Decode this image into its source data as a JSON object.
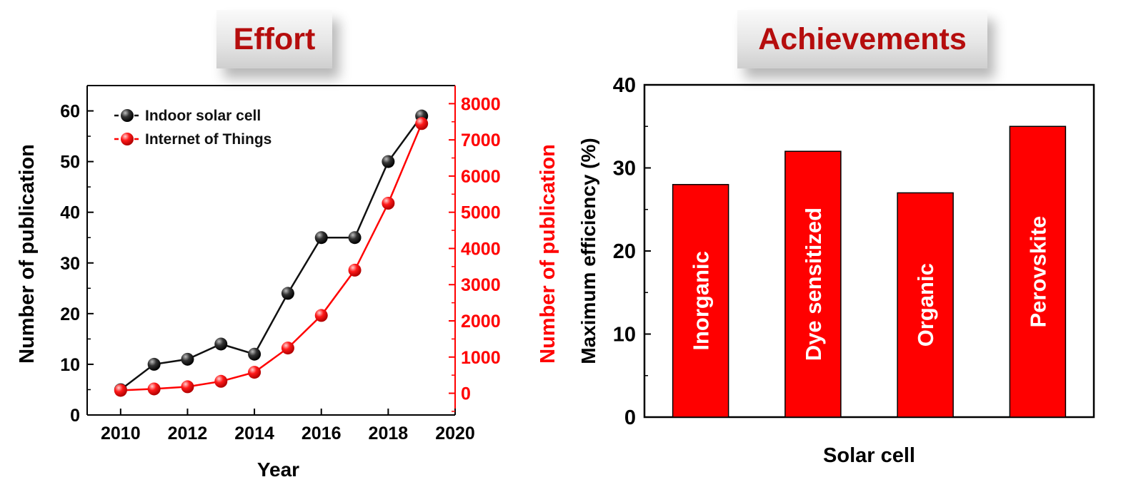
{
  "banners": {
    "left": "Effort",
    "right": "Achievements"
  },
  "colors": {
    "black_series": "#111111",
    "red_series": "#ff0000",
    "bar_fill": "#ff0000",
    "banner_text": "#b50d0d"
  },
  "chart_data": [
    {
      "type": "line",
      "xlabel": "Year",
      "ylabel_left": "Number of publication",
      "ylabel_right": "Number of publication",
      "xlim": [
        2009,
        2020
      ],
      "ylim_left": [
        0,
        65
      ],
      "ylim_right": [
        -600,
        8500
      ],
      "xticks": [
        2010,
        2012,
        2014,
        2016,
        2018,
        2020
      ],
      "yticks_left": [
        0,
        10,
        20,
        30,
        40,
        50,
        60
      ],
      "yticks_right": [
        0,
        1000,
        2000,
        3000,
        4000,
        5000,
        6000,
        7000,
        8000
      ],
      "legend_position": "top-left",
      "series": [
        {
          "name": "Indoor solar cell",
          "axis": "left",
          "color": "#111111",
          "x": [
            2010,
            2011,
            2012,
            2013,
            2014,
            2015,
            2016,
            2017,
            2018,
            2019
          ],
          "y": [
            5,
            10,
            11,
            14,
            12,
            24,
            35,
            35,
            50,
            59
          ]
        },
        {
          "name": "Internet of Things",
          "axis": "right",
          "color": "#ff0000",
          "x": [
            2010,
            2011,
            2012,
            2013,
            2014,
            2015,
            2016,
            2017,
            2018,
            2019
          ],
          "y": [
            80,
            120,
            180,
            330,
            580,
            1250,
            2150,
            3400,
            5250,
            7450
          ]
        }
      ]
    },
    {
      "type": "bar",
      "xlabel": "Solar cell",
      "ylabel": "Maximum efficiency (%)",
      "ylim": [
        0,
        40
      ],
      "yticks": [
        0,
        10,
        20,
        30,
        40
      ],
      "categories": [
        "Inorganic",
        "Dye sensitized",
        "Organic",
        "Perovskite"
      ],
      "values": [
        28,
        32,
        27,
        35
      ]
    }
  ]
}
